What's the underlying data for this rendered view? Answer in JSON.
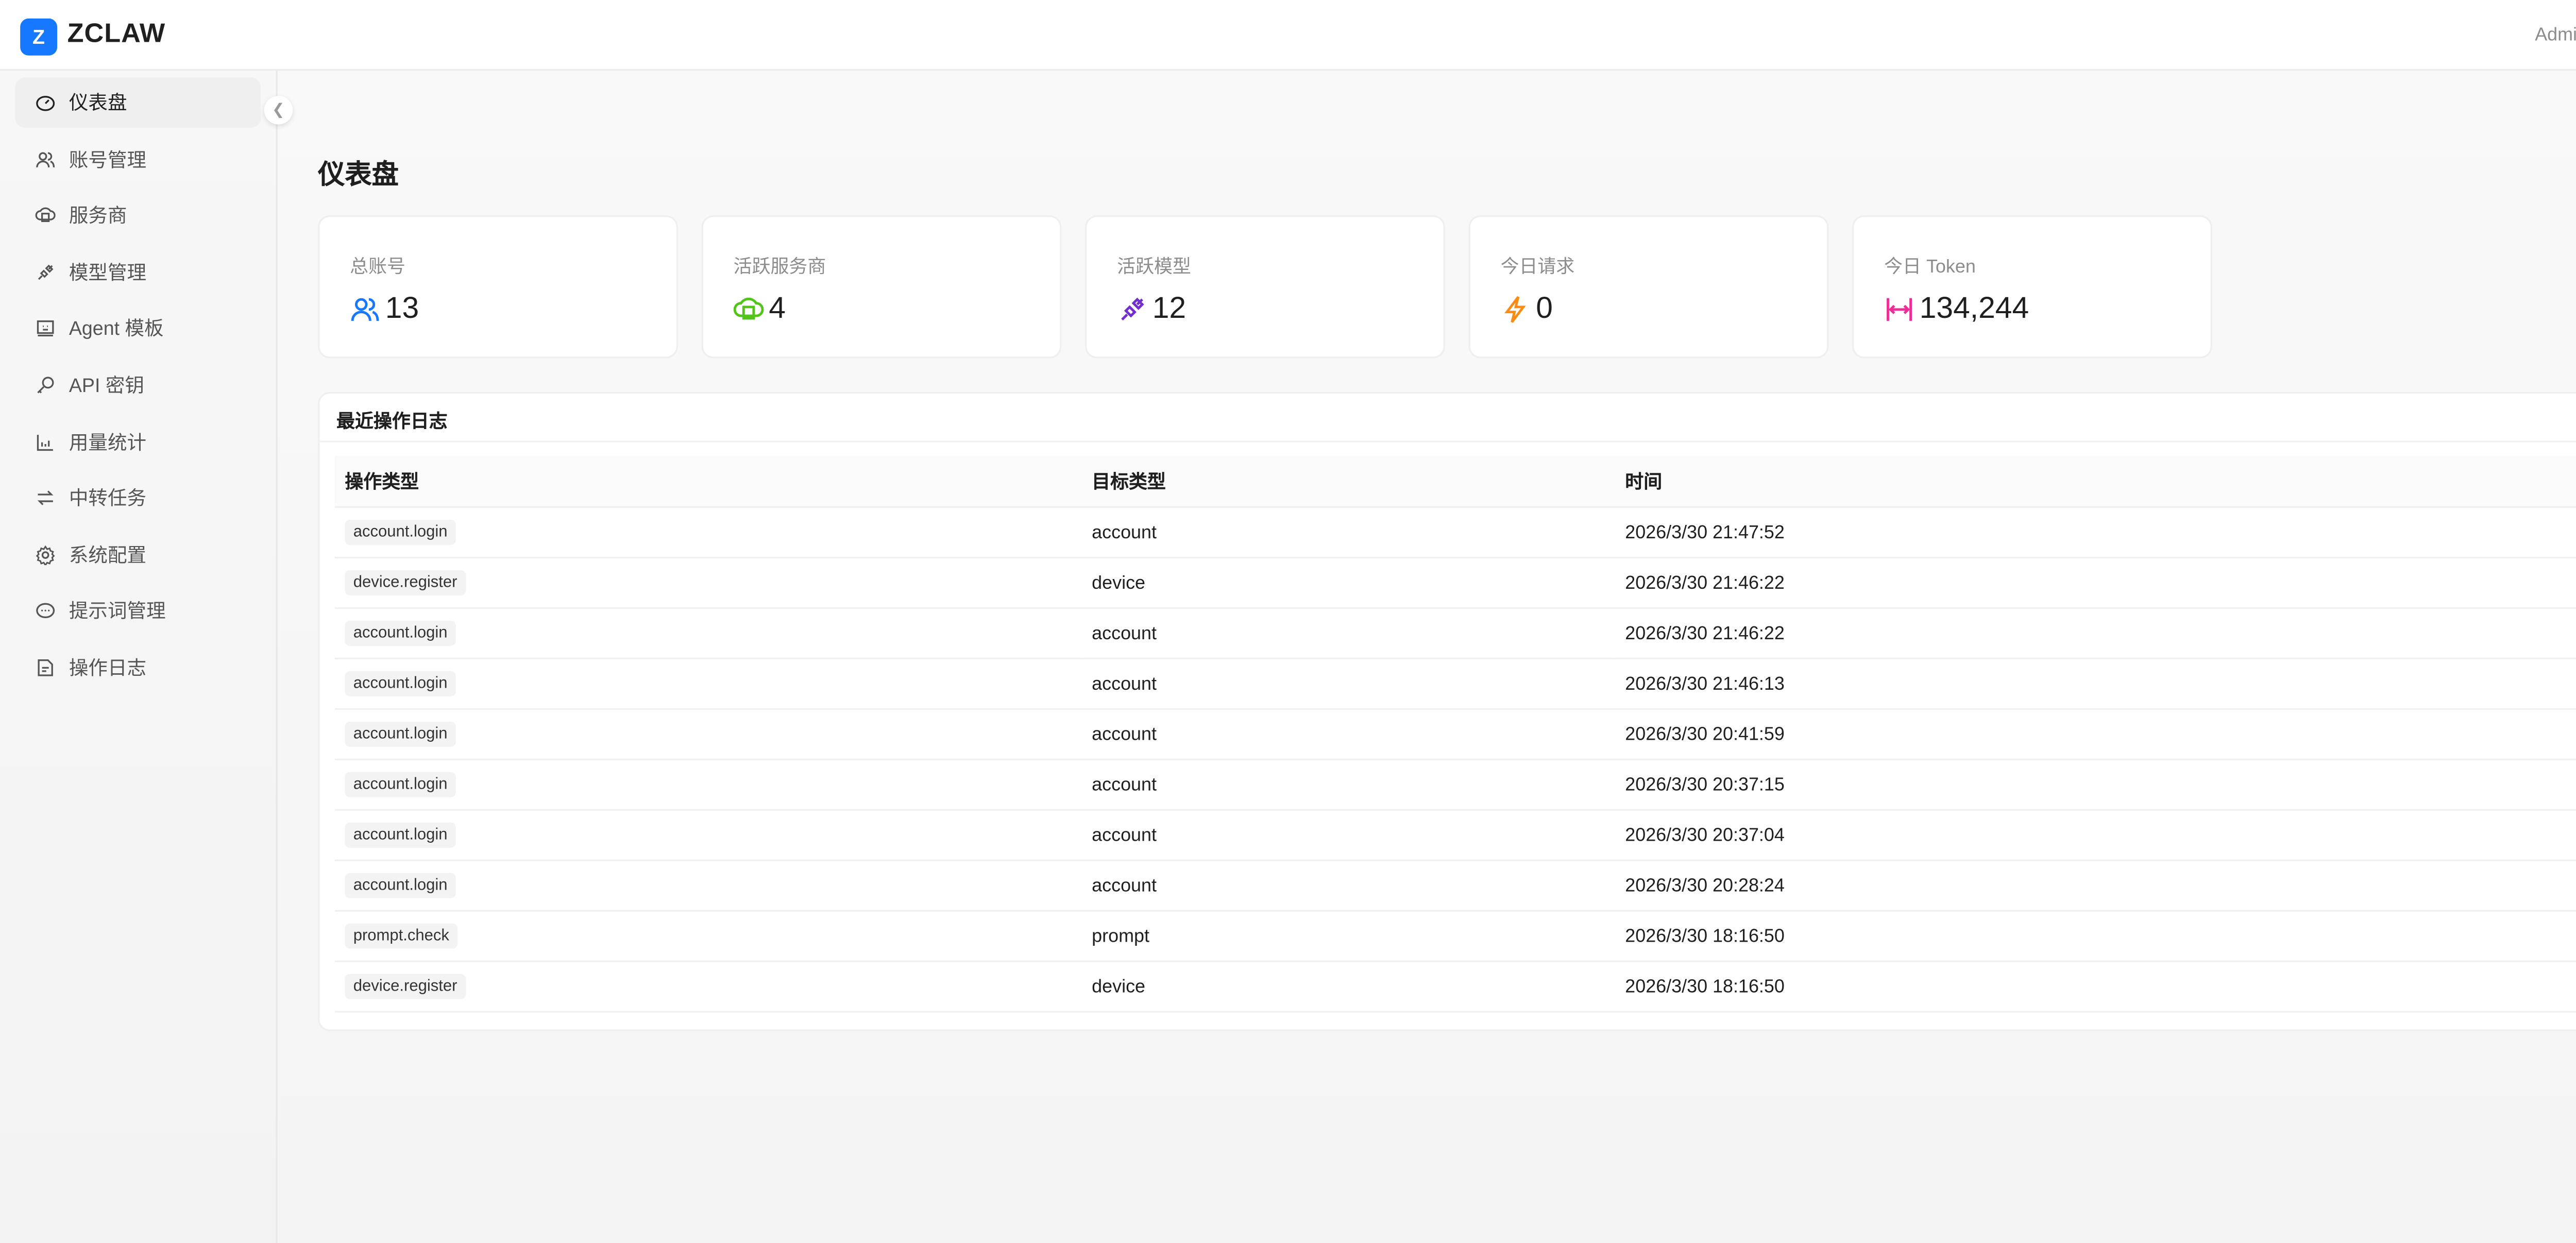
{
  "header": {
    "logo_letter": "Z",
    "brand": "ZCLAW",
    "user": "Admin"
  },
  "sidebar": {
    "items": [
      {
        "label": "仪表盘",
        "icon": "dashboard-icon",
        "active": true
      },
      {
        "label": "账号管理",
        "icon": "users-icon"
      },
      {
        "label": "服务商",
        "icon": "cloud-server-icon"
      },
      {
        "label": "模型管理",
        "icon": "plug-icon"
      },
      {
        "label": "Agent 模板",
        "icon": "robot-icon"
      },
      {
        "label": "API 密钥",
        "icon": "key-icon"
      },
      {
        "label": "用量统计",
        "icon": "bar-chart-icon"
      },
      {
        "label": "中转任务",
        "icon": "swap-icon"
      },
      {
        "label": "系统配置",
        "icon": "gear-icon"
      },
      {
        "label": "提示词管理",
        "icon": "message-icon"
      },
      {
        "label": "操作日志",
        "icon": "file-text-icon"
      }
    ],
    "collapse_icon": "chevron-left-icon"
  },
  "page": {
    "title": "仪表盘"
  },
  "stats": [
    {
      "label": "总账号",
      "value": "13",
      "icon": "users-icon",
      "color": "#1677ff"
    },
    {
      "label": "活跃服务商",
      "value": "4",
      "icon": "cloud-server-icon",
      "color": "#52c41a"
    },
    {
      "label": "活跃模型",
      "value": "12",
      "icon": "plug-icon",
      "color": "#722ed1"
    },
    {
      "label": "今日请求",
      "value": "0",
      "icon": "thunderbolt-icon",
      "color": "#fa8c16"
    },
    {
      "label": "今日 Token",
      "value": "134,244",
      "icon": "column-width-icon",
      "color": "#eb2f96"
    }
  ],
  "log": {
    "title": "最近操作日志",
    "columns": [
      "操作类型",
      "目标类型",
      "时间"
    ],
    "rows": [
      [
        "account.login",
        "account",
        "2026/3/30 21:47:52"
      ],
      [
        "device.register",
        "device",
        "2026/3/30 21:46:22"
      ],
      [
        "account.login",
        "account",
        "2026/3/30 21:46:22"
      ],
      [
        "account.login",
        "account",
        "2026/3/30 21:46:13"
      ],
      [
        "account.login",
        "account",
        "2026/3/30 20:41:59"
      ],
      [
        "account.login",
        "account",
        "2026/3/30 20:37:15"
      ],
      [
        "account.login",
        "account",
        "2026/3/30 20:37:04"
      ],
      [
        "account.login",
        "account",
        "2026/3/30 20:28:24"
      ],
      [
        "prompt.check",
        "prompt",
        "2026/3/30 18:16:50"
      ],
      [
        "device.register",
        "device",
        "2026/3/30 18:16:50"
      ]
    ]
  }
}
